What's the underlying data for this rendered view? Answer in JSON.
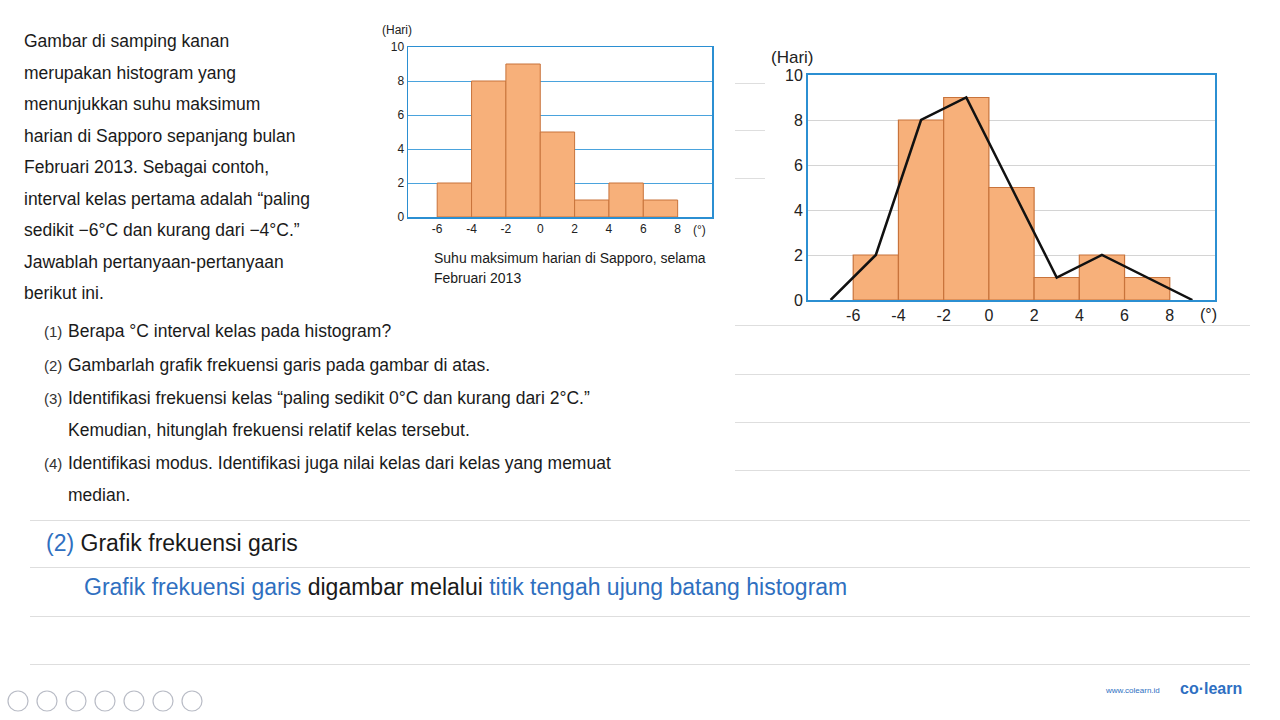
{
  "intro": [
    "Gambar di samping kanan",
    "merupakan histogram yang",
    "menunjukkan suhu maksimum",
    "harian di Sapporo sepanjang bulan",
    "Februari 2013. Sebagai contoh,",
    "interval kelas pertama adalah “paling",
    "sedikit −6°C dan kurang dari −4°C.”",
    "Jawablah pertanyaan-pertanyaan",
    "berikut ini."
  ],
  "questions": [
    {
      "number": "(1)",
      "lines": [
        "Berapa °C interval kelas pada histogram?"
      ]
    },
    {
      "number": "(2)",
      "lines": [
        "Gambarlah grafik frekuensi garis pada gambar di atas."
      ]
    },
    {
      "number": "(3)",
      "lines": [
        "Identifikasi frekuensi kelas “paling sedikit 0°C dan kurang dari 2°C.”",
        "Kemudian, hitunglah frekuensi relatif kelas tersebut."
      ]
    },
    {
      "number": "(4)",
      "lines": [
        "Identifikasi modus. Identifikasi juga nilai kelas dari kelas yang memuat",
        "median."
      ]
    }
  ],
  "answer": {
    "number": "(2)",
    "heading": "Grafik frekuensi garis",
    "parts": [
      {
        "text": "Grafik frekuensi garis",
        "color": "#2f6fc0"
      },
      {
        "text": "digambar melalui",
        "color": "#1a1a1a"
      },
      {
        "text": "titik tengah ujung batang histogram",
        "color": "#2f6fc0"
      }
    ]
  },
  "footer": {
    "site": "www.colearn.id",
    "brand": "co·learn"
  },
  "chart_data": [
    {
      "type": "histogram",
      "y_label": "(Hari)",
      "x_label": "(°)",
      "caption": [
        "Suhu maksimum harian di Sapporo, selama",
        "Februari 2013"
      ],
      "bins": [
        -6,
        -4,
        -2,
        0,
        2,
        4,
        6,
        8
      ],
      "values": [
        2,
        8,
        9,
        5,
        1,
        2,
        1
      ],
      "color": "#f7b07a",
      "xlim": [
        -7.7,
        10
      ],
      "xticks": [
        -6,
        -4,
        -2,
        0,
        2,
        4,
        6,
        8
      ],
      "ylim": [
        0,
        10
      ],
      "yticks": [
        0,
        2,
        4,
        6,
        8,
        10
      ],
      "grid": true
    },
    {
      "type": "histogram",
      "y_label": "(Hari)",
      "x_label": "(°)",
      "bins": [
        -6,
        -4,
        -2,
        0,
        2,
        4,
        6,
        8
      ],
      "values": [
        2,
        8,
        9,
        5,
        1,
        2,
        1
      ],
      "color": "#f7b07a",
      "series": [
        {
          "type": "line",
          "x": [
            -7,
            -5,
            -3,
            -1,
            1,
            3,
            5,
            7,
            9
          ],
          "values": [
            0,
            2,
            8,
            9,
            5,
            1,
            2,
            1,
            0
          ],
          "color": "#111111"
        }
      ],
      "xlim": [
        -8,
        10
      ],
      "xticks": [
        -6,
        -4,
        -2,
        0,
        2,
        4,
        6,
        8
      ],
      "ylim": [
        0,
        10
      ],
      "yticks": [
        0,
        2,
        4,
        6,
        8,
        10
      ],
      "grid": true
    }
  ]
}
